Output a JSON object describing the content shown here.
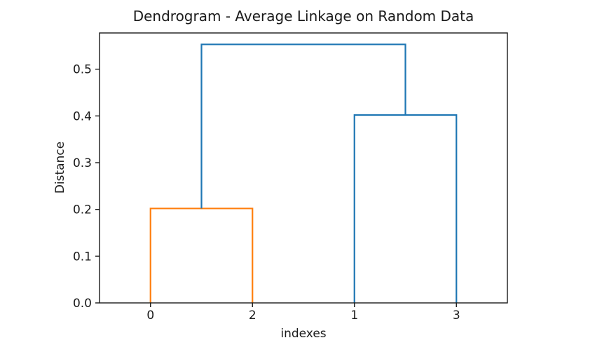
{
  "figure": {
    "background": "#ffffff",
    "spine_color": "#1a1a1a",
    "text_color": "#1a1a1a"
  },
  "chart_data": {
    "type": "dendrogram",
    "title": "Dendrogram - Average Linkage on Random Data",
    "xlabel": "indexes",
    "ylabel": "Distance",
    "leaf_labels": [
      "0",
      "2",
      "1",
      "3"
    ],
    "leaf_positions": [
      5,
      15,
      25,
      35
    ],
    "xlim": [
      0,
      40
    ],
    "ylim": [
      0,
      0.5775
    ],
    "ytick_values": [
      0.0,
      0.1,
      0.2,
      0.3,
      0.4,
      0.5
    ],
    "ytick_labels": [
      "0.0",
      "0.1",
      "0.2",
      "0.3",
      "0.4",
      "0.5"
    ],
    "grid": false,
    "legend_position": "none",
    "merge_heights": {
      "cluster_0_2": 0.202,
      "cluster_1_3": 0.402,
      "root": 0.553
    },
    "colors": {
      "cluster_0_2": "#ff7f0e",
      "cluster_1_3": "#1f77b4",
      "root": "#1f77b4"
    },
    "links": [
      {
        "name": "link-cluster-0-2",
        "color": "#ff7f0e",
        "icoord": [
          5,
          5,
          15,
          15
        ],
        "dcoord": [
          0.0,
          0.202,
          0.202,
          0.0
        ]
      },
      {
        "name": "link-cluster-1-3",
        "color": "#1f77b4",
        "icoord": [
          25,
          25,
          35,
          35
        ],
        "dcoord": [
          0.0,
          0.402,
          0.402,
          0.0
        ]
      },
      {
        "name": "link-root",
        "color": "#1f77b4",
        "icoord": [
          10,
          10,
          30,
          30
        ],
        "dcoord": [
          0.202,
          0.553,
          0.553,
          0.402
        ]
      }
    ]
  }
}
